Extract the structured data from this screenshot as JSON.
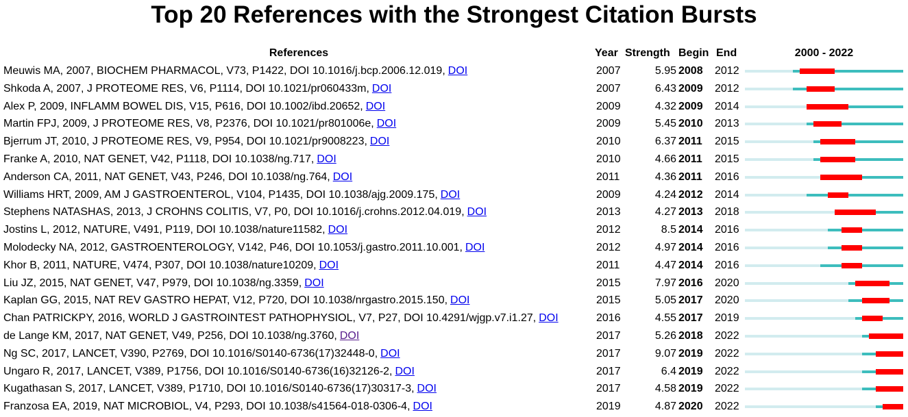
{
  "title": "Top 20 References with the Strongest Citation Bursts",
  "table": {
    "headers": [
      "References",
      "Year",
      "Strength",
      "Begin",
      "End"
    ],
    "timeline_label": "2000 - 2022",
    "rows": [
      {
        "reference": "Meuwis MA, 2007, BIOCHEM PHARMACOL, V73, P1422, DOI 10.1016/j.bcp.2006.12.019,",
        "link": "DOI",
        "year": 2007,
        "strength": 5.95,
        "begin": 2008,
        "end": 2012
      },
      {
        "reference": "Shkoda A, 2007, J PROTEOME RES, V6, P1114, DOI 10.1021/pr060433m,",
        "link": "DOI",
        "year": 2007,
        "strength": 6.43,
        "begin": 2009,
        "end": 2012
      },
      {
        "reference": "Alex P, 2009, INFLAMM BOWEL DIS, V15, P616, DOI 10.1002/ibd.20652,",
        "link": "DOI",
        "year": 2009,
        "strength": 4.32,
        "begin": 2009,
        "end": 2014
      },
      {
        "reference": "Martin FPJ, 2009, J PROTEOME RES, V8, P2376, DOI 10.1021/pr801006e,",
        "link": "DOI",
        "year": 2009,
        "strength": 5.45,
        "begin": 2010,
        "end": 2013
      },
      {
        "reference": "Bjerrum JT, 2010, J PROTEOME RES, V9, P954, DOI 10.1021/pr9008223,",
        "link": "DOI",
        "year": 2010,
        "strength": 6.37,
        "begin": 2011,
        "end": 2015
      },
      {
        "reference": "Franke A, 2010, NAT GENET, V42, P1118, DOI 10.1038/ng.717,",
        "link": "DOI",
        "year": 2010,
        "strength": 4.66,
        "begin": 2011,
        "end": 2015
      },
      {
        "reference": "Anderson CA, 2011, NAT GENET, V43, P246, DOI 10.1038/ng.764,",
        "link": "DOI",
        "year": 2011,
        "strength": 4.36,
        "begin": 2011,
        "end": 2016
      },
      {
        "reference": "Williams HRT, 2009, AM J GASTROENTEROL, V104, P1435, DOI 10.1038/ajg.2009.175,",
        "link": "DOI",
        "year": 2009,
        "strength": 4.24,
        "begin": 2012,
        "end": 2014
      },
      {
        "reference": "Stephens NATASHAS, 2013, J CROHNS COLITIS, V7, P0, DOI 10.1016/j.crohns.2012.04.019,",
        "link": "DOI",
        "year": 2013,
        "strength": 4.27,
        "begin": 2013,
        "end": 2018
      },
      {
        "reference": "Jostins L, 2012, NATURE, V491, P119, DOI 10.1038/nature11582,",
        "link": "DOI",
        "year": 2012,
        "strength": 8.5,
        "begin": 2014,
        "end": 2016
      },
      {
        "reference": "Molodecky NA, 2012, GASTROENTEROLOGY, V142, P46, DOI 10.1053/j.gastro.2011.10.001,",
        "link": "DOI",
        "year": 2012,
        "strength": 4.97,
        "begin": 2014,
        "end": 2016
      },
      {
        "reference": "Khor B, 2011, NATURE, V474, P307, DOI 10.1038/nature10209,",
        "link": "DOI",
        "year": 2011,
        "strength": 4.47,
        "begin": 2014,
        "end": 2016
      },
      {
        "reference": "Liu JZ, 2015, NAT GENET, V47, P979, DOI 10.1038/ng.3359,",
        "link": "DOI",
        "year": 2015,
        "strength": 7.97,
        "begin": 2016,
        "end": 2020
      },
      {
        "reference": "Kaplan GG, 2015, NAT REV GASTRO HEPAT, V12, P720, DOI 10.1038/nrgastro.2015.150,",
        "link": "DOI",
        "year": 2015,
        "strength": 5.05,
        "begin": 2017,
        "end": 2020
      },
      {
        "reference": "Chan PATRICKPY, 2016, WORLD J GASTROINTEST PATHOPHYSIOL, V7, P27, DOI 10.4291/wjgp.v7.i1.27,",
        "link": "DOI",
        "year": 2016,
        "strength": 4.55,
        "begin": 2017,
        "end": 2019
      },
      {
        "reference": "de Lange KM, 2017, NAT GENET, V49, P256, DOI 10.1038/ng.3760,",
        "link": "DOI",
        "visited": true,
        "year": 2017,
        "strength": 5.26,
        "begin": 2018,
        "end": 2022
      },
      {
        "reference": "Ng SC, 2017, LANCET, V390, P2769, DOI 10.1016/S0140-6736(17)32448-0,",
        "link": "DOI",
        "year": 2017,
        "strength": 9.07,
        "begin": 2019,
        "end": 2022
      },
      {
        "reference": "Ungaro R, 2017, LANCET, V389, P1756, DOI 10.1016/S0140-6736(16)32126-2,",
        "link": "DOI",
        "year": 2017,
        "strength": 6.4,
        "begin": 2019,
        "end": 2022
      },
      {
        "reference": "Kugathasan S, 2017, LANCET, V389, P1710, DOI 10.1016/S0140-6736(17)30317-3,",
        "link": "DOI",
        "year": 2017,
        "strength": 4.58,
        "begin": 2019,
        "end": 2022
      },
      {
        "reference": "Franzosa EA, 2019, NAT MICROBIOL, V4, P293, DOI 10.1038/s41564-018-0306-4,",
        "link": "DOI",
        "year": 2019,
        "strength": 4.87,
        "begin": 2020,
        "end": 2022
      }
    ]
  }
}
